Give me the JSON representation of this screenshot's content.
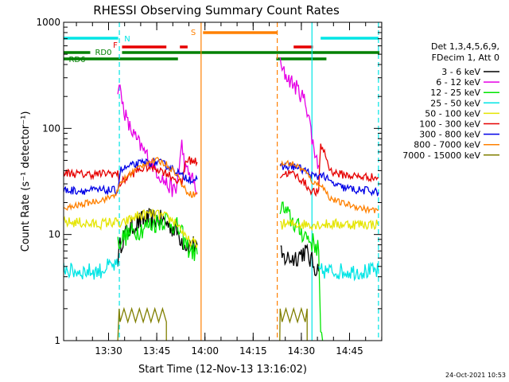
{
  "chart_data": {
    "type": "line",
    "title": "RHESSI Observing Summary Count Rates",
    "xlabel": "Start Time (12-Nov-13 13:16:02)",
    "ylabel": "Count Rate (s⁻¹ detector⁻¹)",
    "y_scale": "log",
    "ylim": [
      1,
      1000
    ],
    "xlim": [
      13.267,
      14.917
    ],
    "x_ticks": [
      {
        "value": 13.5,
        "label": "13:30"
      },
      {
        "value": 13.75,
        "label": "13:45"
      },
      {
        "value": 14.0,
        "label": "14:00"
      },
      {
        "value": 14.25,
        "label": "14:15"
      },
      {
        "value": 14.5,
        "label": "14:30"
      },
      {
        "value": 14.75,
        "label": "14:45"
      }
    ],
    "y_ticks": [
      {
        "value": 1,
        "label": "1"
      },
      {
        "value": 10,
        "label": "10"
      },
      {
        "value": 100,
        "label": "100"
      },
      {
        "value": 1000,
        "label": "1000"
      }
    ],
    "legend_header": [
      "Det 1,3,4,5,6,9,",
      "FDecim 1, Att 0"
    ],
    "legend_position": "right",
    "timestamp": "24-Oct-2021 10:53",
    "flag_bars": [
      {
        "label": "N",
        "color": "#00e5e5",
        "level": 1.0,
        "segments": [
          [
            13.267,
            13.55
          ],
          [
            14.6,
            14.9
          ]
        ]
      },
      {
        "label": "F",
        "color": "#e60000",
        "level": 0.5,
        "segments": [
          [
            13.57,
            13.8
          ],
          [
            13.87,
            13.91
          ],
          [
            14.46,
            14.56
          ]
        ]
      },
      {
        "label": "S",
        "color": "#ff8000",
        "level": 1.0,
        "segments": [
          [
            13.99,
            14.375
          ]
        ]
      },
      {
        "label": "RD0",
        "color": "#008000",
        "level": 0.5,
        "segments": [
          [
            13.267,
            13.405
          ],
          [
            13.57,
            14.905
          ]
        ]
      },
      {
        "label": "RD6",
        "color": "#008000",
        "level": 1.0,
        "segments": [
          [
            13.267,
            13.86
          ],
          [
            14.37,
            14.63
          ]
        ]
      }
    ],
    "vertical_lines": [
      {
        "x": 13.556,
        "color": "#00e5e5",
        "style": "dashed"
      },
      {
        "x": 13.98,
        "color": "#ff8000",
        "style": "solid"
      },
      {
        "x": 14.375,
        "color": "#ff8000",
        "style": "dashed"
      },
      {
        "x": 14.555,
        "color": "#00e5e5",
        "style": "solid"
      },
      {
        "x": 14.9,
        "color": "#00e5e5",
        "style": "dashed"
      }
    ],
    "series": [
      {
        "name": "3 - 6 keV",
        "color": "#000000",
        "noise": 0.1,
        "x": [
          13.548,
          13.555,
          13.57,
          13.6,
          13.65,
          13.7,
          13.75,
          13.8,
          13.85,
          13.88,
          13.9,
          13.93,
          13.96,
          null,
          14.392,
          14.4,
          14.43,
          14.46,
          14.49,
          14.52,
          14.54,
          14.555,
          14.57,
          14.59
        ],
        "y": [
          6,
          7,
          9,
          11,
          13,
          14,
          14,
          13,
          11,
          9,
          8,
          8,
          8,
          null,
          6.5,
          6,
          6,
          6,
          6.5,
          7,
          6,
          5.5,
          5,
          4.5
        ]
      },
      {
        "name": "6 - 12 keV",
        "color": "#e600e5",
        "noise": 0.08,
        "x": [
          13.548,
          13.555,
          13.57,
          13.6,
          13.65,
          13.7,
          13.75,
          13.8,
          13.85,
          13.88,
          13.9,
          13.93,
          13.96,
          null,
          14.39,
          14.395,
          14.4,
          14.43,
          14.46,
          14.49,
          14.52,
          14.54,
          14.555,
          14.57,
          14.59
        ],
        "y": [
          250,
          260,
          180,
          110,
          75,
          55,
          40,
          30,
          25,
          70,
          40,
          35,
          25,
          null,
          400,
          380,
          350,
          300,
          260,
          220,
          180,
          130,
          80,
          60,
          45
        ]
      },
      {
        "name": "12 - 25 keV",
        "color": "#00e500",
        "noise": 0.1,
        "x": [
          13.548,
          13.56,
          13.6,
          13.65,
          13.7,
          13.75,
          13.8,
          13.85,
          13.88,
          13.9,
          13.93,
          13.96,
          null,
          14.39,
          14.4,
          14.43,
          14.46,
          14.49,
          14.52,
          14.54,
          14.555,
          14.57,
          14.59,
          14.6,
          14.61
        ],
        "y": [
          8,
          9,
          10,
          11,
          12,
          13,
          14,
          12,
          10,
          8,
          7,
          6.5,
          null,
          19,
          18,
          15,
          13,
          11,
          10,
          9,
          8.5,
          8,
          7.5,
          1,
          1
        ]
      },
      {
        "name": "25 - 50 keV",
        "color": "#00e5e5",
        "noise": 0.08,
        "x": [
          13.267,
          13.3,
          13.35,
          13.4,
          13.45,
          13.5,
          13.548,
          null,
          14.59,
          14.62,
          14.65,
          14.7,
          14.75,
          14.8,
          14.85,
          14.9
        ],
        "y": [
          5,
          4.5,
          4.5,
          4.5,
          4.5,
          5,
          5,
          null,
          4.5,
          4.5,
          4.5,
          4.5,
          4.5,
          4.5,
          4.5,
          4.5
        ]
      },
      {
        "name": "50 - 100 keV",
        "color": "#e5e500",
        "noise": 0.05,
        "x": [
          13.267,
          13.3,
          13.35,
          13.4,
          13.45,
          13.5,
          13.548,
          13.56,
          13.6,
          13.65,
          13.7,
          13.75,
          13.8,
          13.85,
          13.88,
          13.9,
          13.93,
          13.96,
          null,
          14.39,
          14.4,
          14.43,
          14.46,
          14.49,
          14.52,
          14.54,
          14.555,
          14.57,
          14.59,
          14.6,
          14.65,
          14.7,
          14.75,
          14.8,
          14.85,
          14.9
        ],
        "y": [
          13,
          13,
          13,
          12.5,
          12.5,
          13,
          13,
          12,
          13.5,
          15,
          15.5,
          15.5,
          14.5,
          13,
          11,
          9,
          8.5,
          8,
          null,
          13,
          12.5,
          12.5,
          12.5,
          12.5,
          12.5,
          12.5,
          12.5,
          12.5,
          12.5,
          12.5,
          12.5,
          12.5,
          12.5,
          12.5,
          12.5,
          12.5
        ]
      },
      {
        "name": "100 - 300 keV",
        "color": "#e60000",
        "noise": 0.04,
        "x": [
          13.267,
          13.3,
          13.35,
          13.4,
          13.45,
          13.5,
          13.548,
          13.56,
          13.6,
          13.65,
          13.7,
          13.75,
          13.8,
          13.85,
          13.88,
          13.9,
          13.93,
          13.96,
          null,
          14.39,
          14.4,
          14.43,
          14.46,
          14.49,
          14.52,
          14.54,
          14.555,
          14.57,
          14.59,
          14.6,
          14.62,
          14.65,
          14.7,
          14.75,
          14.8,
          14.85,
          14.9
        ],
        "y": [
          38,
          38,
          37,
          37,
          37,
          38,
          37,
          30,
          35,
          40,
          43,
          42,
          38,
          33,
          30,
          50,
          50,
          48,
          null,
          36,
          37,
          38,
          37,
          34,
          30,
          27,
          26,
          25,
          25,
          70,
          60,
          40,
          37,
          36,
          35,
          35,
          34
        ]
      },
      {
        "name": "300 - 800 keV",
        "color": "#0000e6",
        "noise": 0.04,
        "x": [
          13.267,
          13.3,
          13.35,
          13.4,
          13.45,
          13.5,
          13.548,
          13.56,
          13.6,
          13.65,
          13.7,
          13.75,
          13.8,
          13.85,
          13.88,
          13.9,
          13.93,
          13.96,
          null,
          14.39,
          14.4,
          14.43,
          14.46,
          14.49,
          14.52,
          14.54,
          14.555,
          14.57,
          14.59,
          14.6,
          14.65,
          14.7,
          14.75,
          14.8,
          14.85,
          14.9
        ],
        "y": [
          26,
          26,
          26,
          26,
          26,
          26,
          26,
          40,
          43,
          46,
          48,
          48,
          45,
          40,
          35,
          35,
          33,
          33,
          null,
          42,
          43,
          44,
          44,
          42,
          40,
          38,
          36,
          35,
          35,
          38,
          31,
          28,
          27,
          26,
          26,
          25
        ]
      },
      {
        "name": "800 - 7000 keV",
        "color": "#ff8000",
        "noise": 0.03,
        "x": [
          13.267,
          13.3,
          13.35,
          13.4,
          13.45,
          13.5,
          13.548,
          13.56,
          13.6,
          13.65,
          13.7,
          13.75,
          13.8,
          13.85,
          13.88,
          13.9,
          13.93,
          13.96,
          null,
          14.39,
          14.4,
          14.43,
          14.46,
          14.49,
          14.52,
          14.54,
          14.555,
          14.57,
          14.59,
          14.6,
          14.65,
          14.7,
          14.75,
          14.8,
          14.85,
          14.9
        ],
        "y": [
          17,
          18,
          19,
          20,
          21,
          22,
          25,
          30,
          36,
          42,
          48,
          50,
          46,
          38,
          30,
          26,
          24,
          24,
          null,
          45,
          46,
          47,
          46,
          43,
          39,
          35,
          32,
          30,
          30,
          30,
          22,
          20,
          19,
          18,
          17,
          17
        ]
      },
      {
        "name": "7000 - 15000 keV",
        "color": "#807f00",
        "noise": 0.0,
        "x": [
          13.548,
          13.555,
          13.56,
          13.58,
          13.6,
          13.62,
          13.64,
          13.66,
          13.68,
          13.7,
          13.72,
          13.74,
          13.76,
          13.78,
          13.8,
          13.8,
          null,
          14.388,
          14.39,
          14.4,
          14.42,
          14.44,
          14.46,
          14.48,
          14.5,
          14.52,
          14.53,
          14.53
        ],
        "y": [
          1,
          2,
          1.5,
          2,
          1.5,
          2,
          1.5,
          2,
          1.5,
          2,
          1.5,
          2,
          1.5,
          2,
          1.5,
          1,
          null,
          1,
          2,
          1.5,
          2,
          1.5,
          2,
          1.5,
          2,
          1.5,
          2,
          1
        ]
      }
    ]
  }
}
